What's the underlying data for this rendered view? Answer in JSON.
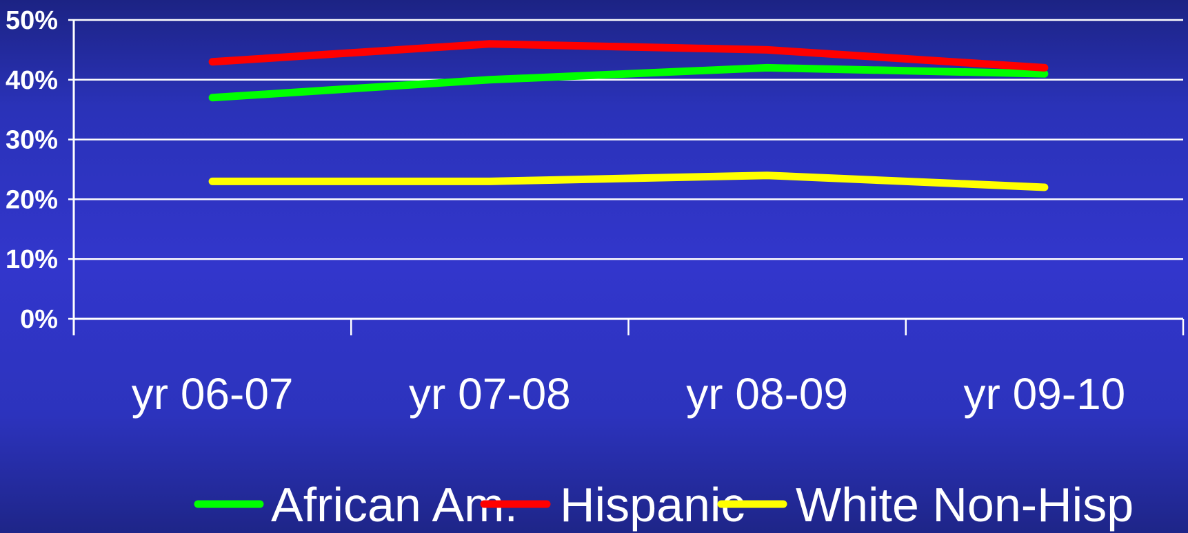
{
  "chart_data": {
    "type": "line",
    "title": "",
    "xlabel": "",
    "ylabel": "",
    "categories": [
      "yr 06-07",
      "yr 07-08",
      "yr 08-09",
      "yr 09-10"
    ],
    "ylim": [
      0,
      50
    ],
    "yticks": [
      0,
      10,
      20,
      30,
      40,
      50
    ],
    "ytick_labels": [
      "0%",
      "10%",
      "20%",
      "30%",
      "40%",
      "50%"
    ],
    "grid": true,
    "legend_position": "bottom",
    "series": [
      {
        "name": "African Am.",
        "color": "#00ff00",
        "values": [
          37,
          40,
          42,
          41
        ]
      },
      {
        "name": "Hispanic",
        "color": "#ff0000",
        "values": [
          43,
          46,
          45,
          42
        ]
      },
      {
        "name": "White Non-Hisp",
        "color": "#ffff00",
        "values": [
          23,
          23,
          24,
          22
        ]
      }
    ],
    "colors": {
      "background_top": "#1c2384",
      "background_mid": "#3236cc",
      "grid": "#ffffff",
      "text": "#ffffff"
    }
  }
}
